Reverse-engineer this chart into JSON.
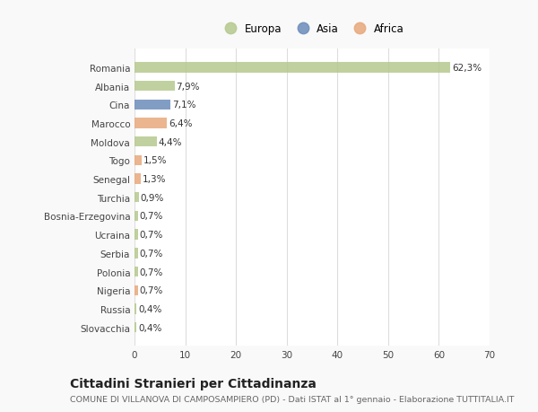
{
  "categories": [
    "Romania",
    "Albania",
    "Cina",
    "Marocco",
    "Moldova",
    "Togo",
    "Senegal",
    "Turchia",
    "Bosnia-Erzegovina",
    "Ucraina",
    "Serbia",
    "Polonia",
    "Nigeria",
    "Russia",
    "Slovacchia"
  ],
  "values": [
    62.3,
    7.9,
    7.1,
    6.4,
    4.4,
    1.5,
    1.3,
    0.9,
    0.7,
    0.7,
    0.7,
    0.7,
    0.7,
    0.4,
    0.4
  ],
  "labels": [
    "62,3%",
    "7,9%",
    "7,1%",
    "6,4%",
    "4,4%",
    "1,5%",
    "1,3%",
    "0,9%",
    "0,7%",
    "0,7%",
    "0,7%",
    "0,7%",
    "0,7%",
    "0,4%",
    "0,4%"
  ],
  "continents": [
    "Europa",
    "Europa",
    "Asia",
    "Africa",
    "Europa",
    "Africa",
    "Africa",
    "Europa",
    "Europa",
    "Europa",
    "Europa",
    "Europa",
    "Africa",
    "Europa",
    "Europa"
  ],
  "colors": {
    "Europa": "#b5c98e",
    "Asia": "#6b8cba",
    "Africa": "#e8a87c"
  },
  "legend_items": [
    "Europa",
    "Asia",
    "Africa"
  ],
  "legend_colors": [
    "#b5c98e",
    "#6b8cba",
    "#e8a87c"
  ],
  "xlim": [
    0,
    70
  ],
  "xticks": [
    0,
    10,
    20,
    30,
    40,
    50,
    60,
    70
  ],
  "title": "Cittadini Stranieri per Cittadinanza",
  "subtitle": "COMUNE DI VILLANOVA DI CAMPOSAMPIERO (PD) - Dati ISTAT al 1° gennaio - Elaborazione TUTTITALIA.IT",
  "background_color": "#f9f9f9",
  "plot_background": "#ffffff",
  "grid_color": "#dddddd",
  "bar_height": 0.55,
  "label_fontsize": 7.5,
  "tick_fontsize": 7.5,
  "title_fontsize": 10,
  "subtitle_fontsize": 6.8,
  "legend_fontsize": 8.5
}
